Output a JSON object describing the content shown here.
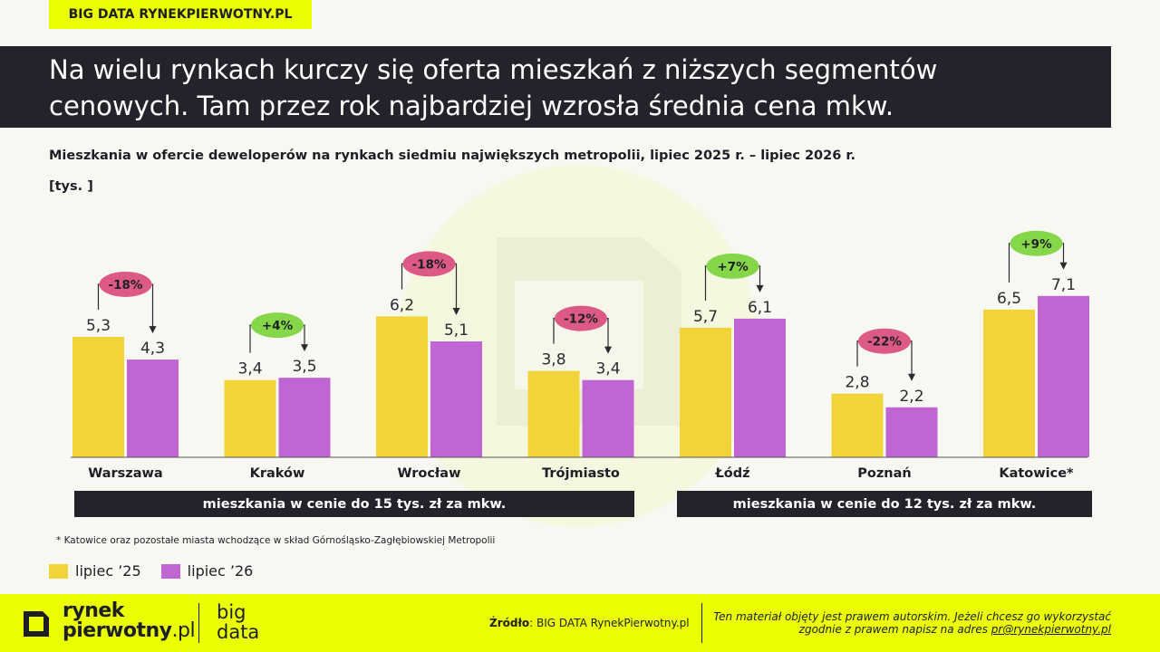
{
  "header": {
    "tag": "BIG DATA RYNEKPIERWOTNY.PL",
    "title_line1": "Na wielu rynkach kurczy się oferta mieszkań z niższych segmentów",
    "title_line2": "cenowych. Tam przez rok najbardziej wzrosła średnia cena mkw."
  },
  "chart_data": {
    "type": "bar",
    "title": "Mieszkania w ofercie deweloperów na rynkach siedmiu największych metropolii, lipiec 2025 r. – lipiec 2026 r.",
    "unit": "[tys. ]",
    "categories": [
      "Warszawa",
      "Kraków",
      "Wrocław",
      "Trójmiasto",
      "Łódź",
      "Poznań",
      "Katowice*"
    ],
    "series": [
      {
        "name": "lipiec '25",
        "values": [
          5.3,
          3.4,
          6.2,
          3.8,
          5.7,
          2.8,
          6.5
        ],
        "labels": [
          "5,3",
          "3,4",
          "6,2",
          "3,8",
          "5,7",
          "2,8",
          "6,5"
        ],
        "color": "#f0d43a"
      },
      {
        "name": "lipiec '26",
        "values": [
          4.3,
          3.5,
          5.1,
          3.4,
          6.1,
          2.2,
          7.1
        ],
        "labels": [
          "4,3",
          "3,5",
          "5,1",
          "3,4",
          "6,1",
          "2,2",
          "7,1"
        ],
        "color": "#bf65d4"
      }
    ],
    "changes": [
      "-18%",
      "+4%",
      "-18%",
      "-12%",
      "+7%",
      "-22%",
      "+9%"
    ],
    "change_colors": {
      "negative": "#dd5a86",
      "positive": "#86d64a"
    },
    "ylim": [
      0,
      8
    ],
    "grid": false,
    "legend": "bottom-left"
  },
  "segments": [
    {
      "label": "mieszkania w cenie do 15 tys. zł za mkw."
    },
    {
      "label": "mieszkania w cenie do 12 tys. zł za mkw."
    }
  ],
  "footnote": "* Katowice oraz pozostałe miasta wchodzące w skład Górnośląsko-Zagłębiowskiej Metropolii",
  "legend": {
    "item1": "lipiec ’25",
    "item2": "lipiec ’26"
  },
  "footer": {
    "logo_line1": "rynek",
    "logo_line2a": "pierwotny",
    "logo_line2b": ".pl",
    "bigdata_line1": "big",
    "bigdata_line2": "data",
    "source_label": "Źródło",
    "source_text": ": BIG DATA RynekPierwotny.pl",
    "copyright_line1": "Ten materiał objęty jest prawem autorskim. Jeżeli chcesz go wykorzystać",
    "copyright_line2": "zgodnie z prawem napisz na adres ",
    "copyright_email": "pr@rynekpierwotny.pl"
  }
}
